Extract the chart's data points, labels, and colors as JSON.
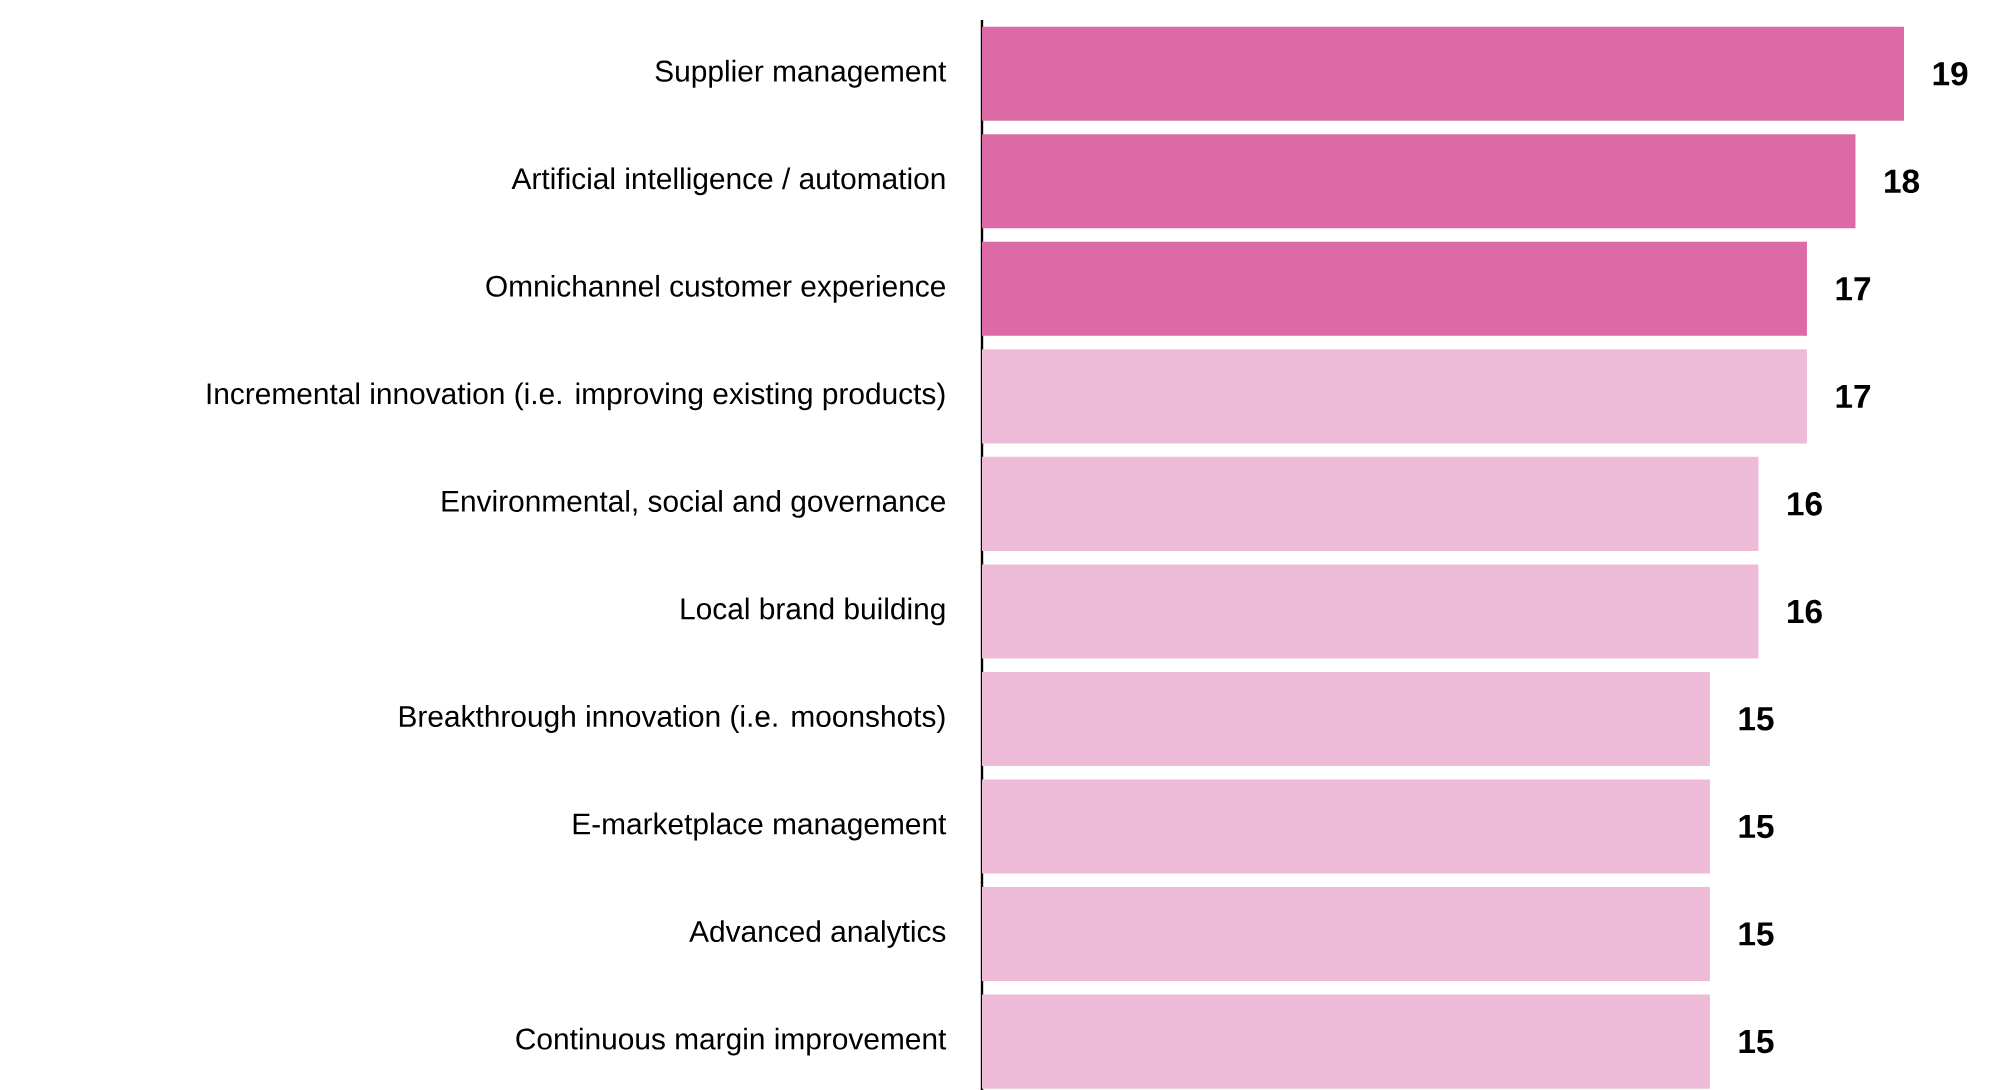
{
  "chart_data": {
    "type": "bar",
    "orientation": "horizontal",
    "categories": [
      "Supplier management",
      "Artificial intelligence / automation",
      "Omnichannel customer experience",
      "Incremental innovation (i.e. improving existing products)",
      "Environmental, social and governance",
      "Local brand building",
      "Breakthrough innovation (i.e. moonshots)",
      "E-marketplace management",
      "Advanced analytics",
      "Continuous margin improvement"
    ],
    "values": [
      19,
      18,
      17,
      17,
      16,
      16,
      15,
      15,
      15,
      15
    ],
    "colors": [
      "#dc6aa6",
      "#dc6aa6",
      "#dc6aa6",
      "#edbbd8",
      "#edbbd8",
      "#edbbd8",
      "#edbbd8",
      "#edbbd8",
      "#edbbd8",
      "#edbbd8"
    ],
    "data_labels": true
  }
}
